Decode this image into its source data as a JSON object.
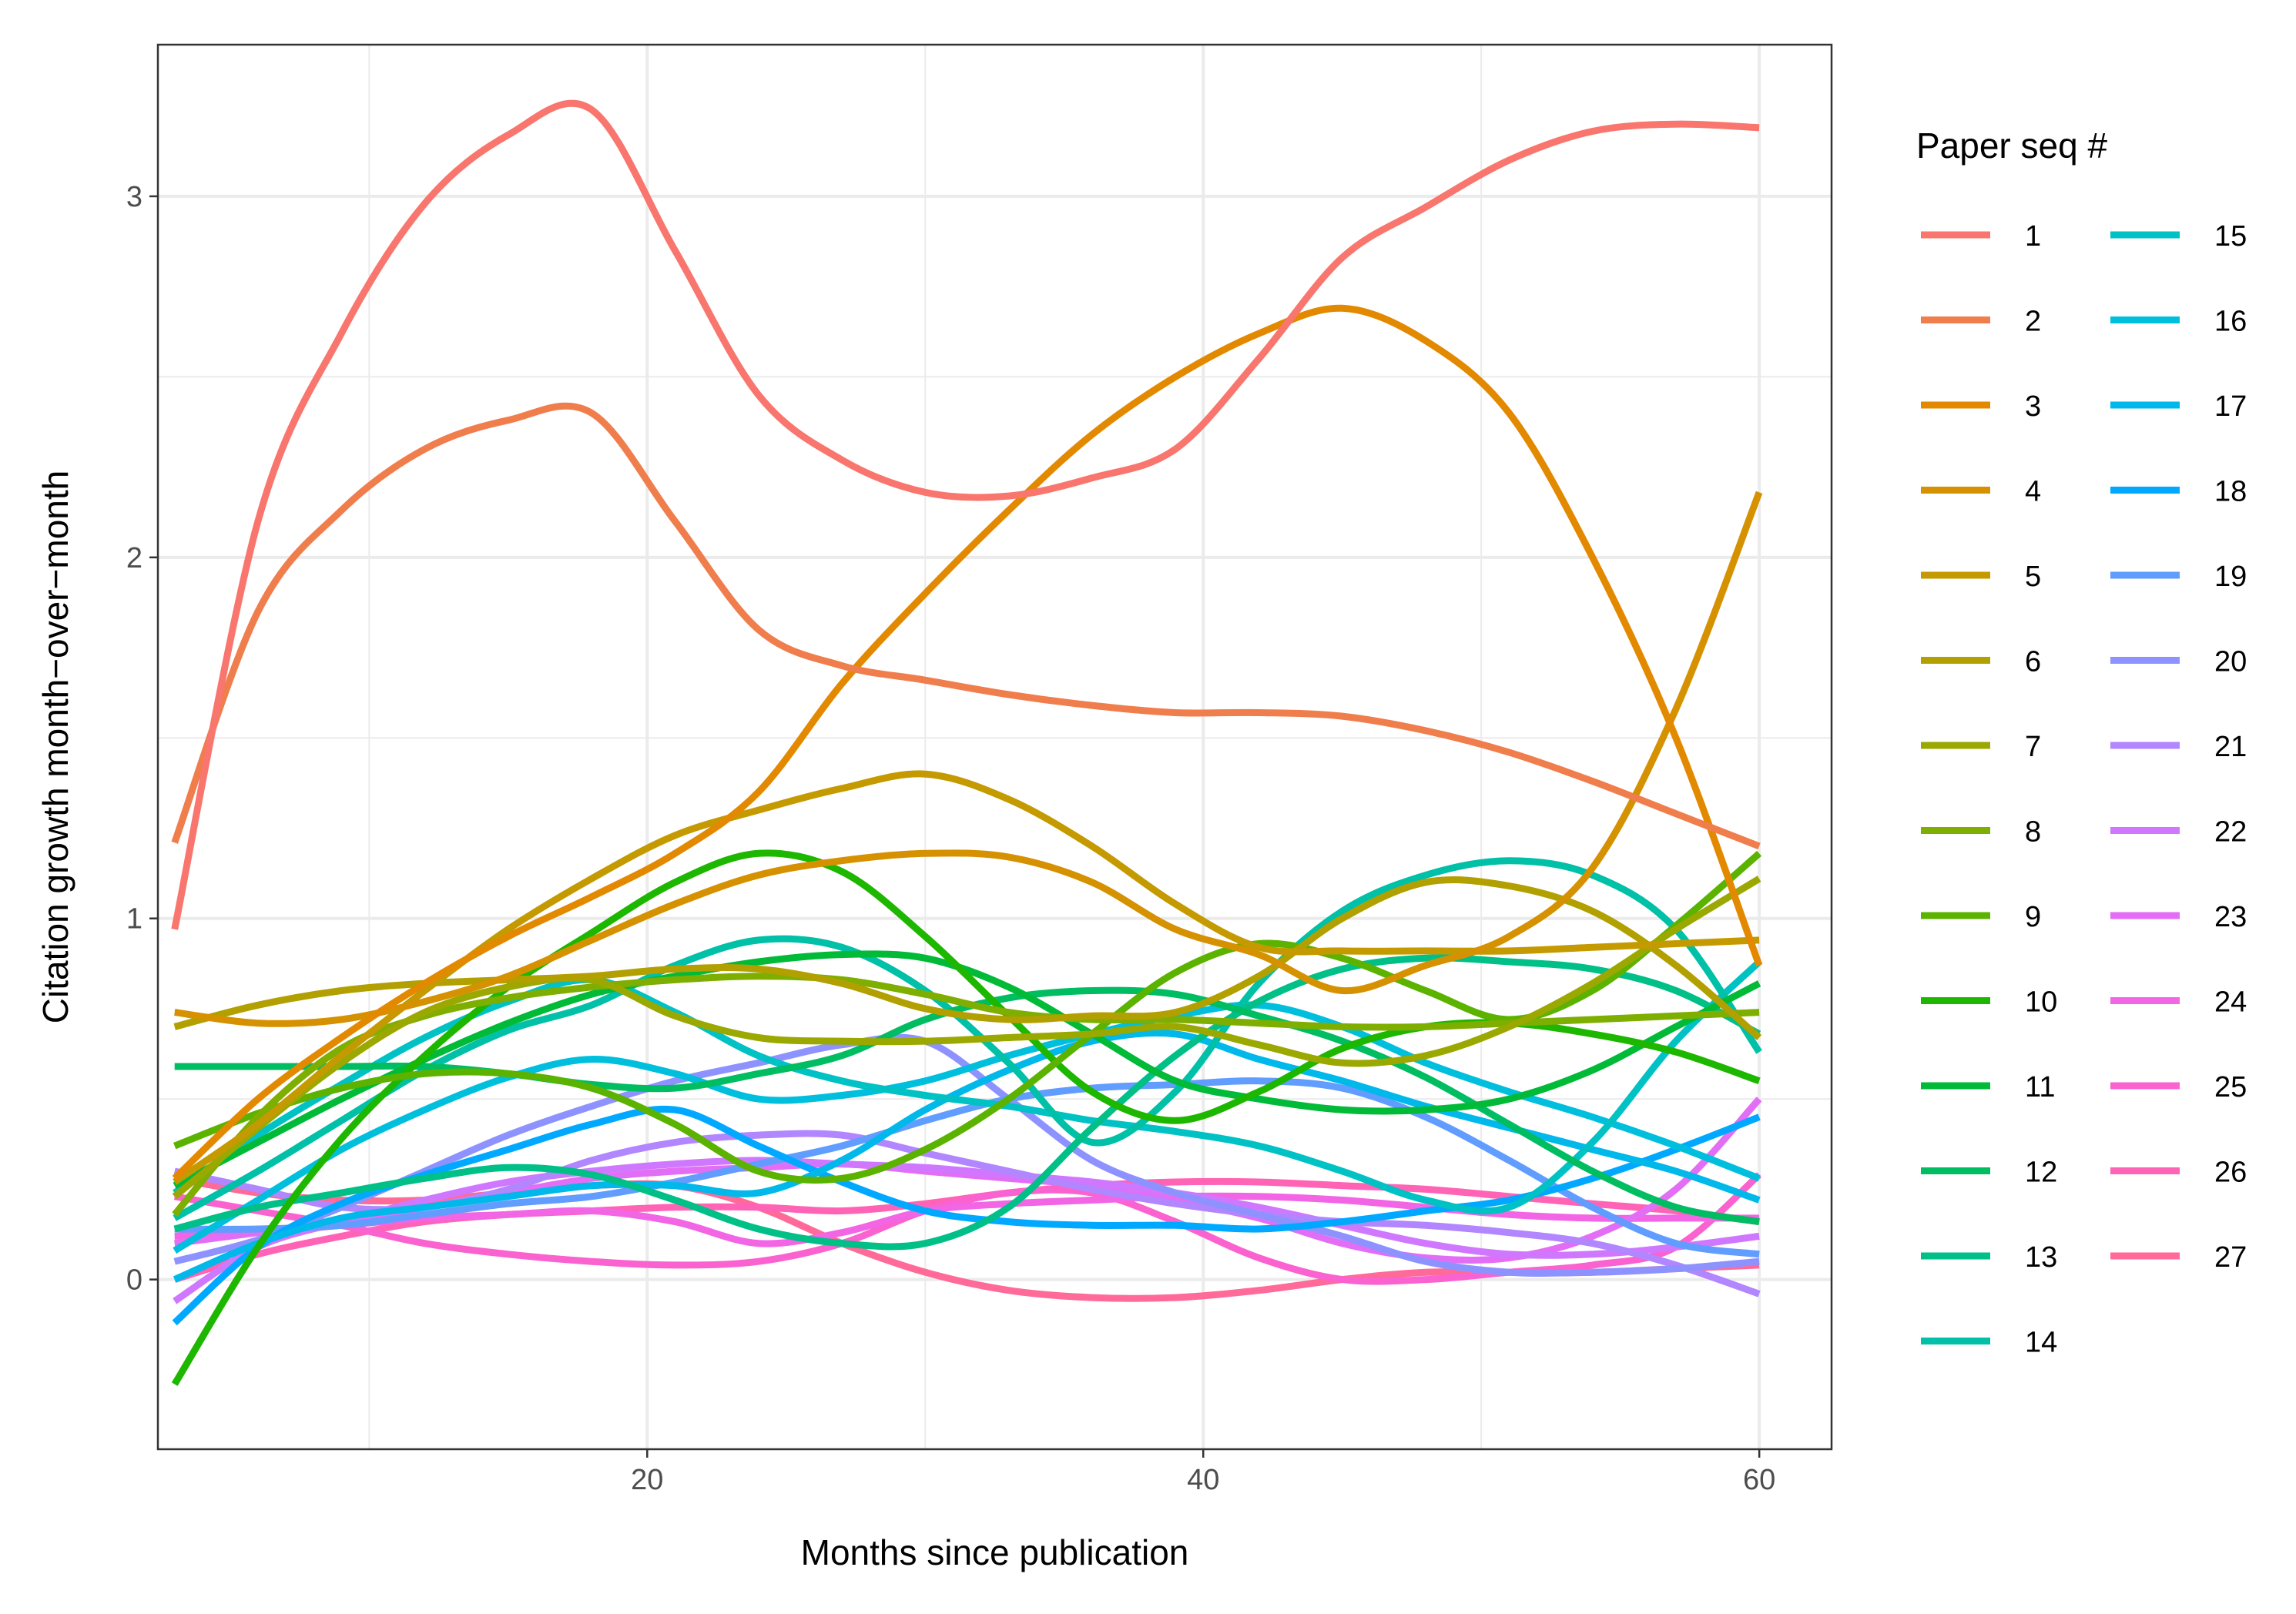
{
  "chart_data": {
    "type": "line",
    "xlabel": "Months since publication",
    "ylabel": "Citation growth month−over−month",
    "xlim": [
      2.4,
      62.6
    ],
    "ylim": [
      -0.47,
      3.42
    ],
    "x_ticks": [
      20,
      40,
      60
    ],
    "y_ticks": [
      0,
      1,
      2,
      3
    ],
    "grid": true,
    "legend": {
      "title": "Paper seq #",
      "placement": "right"
    },
    "x": [
      3,
      6,
      9,
      12,
      15,
      18,
      21,
      24,
      27,
      30,
      33,
      36,
      39,
      42,
      45,
      48,
      51,
      54,
      57,
      60
    ],
    "series": [
      {
        "name": "1",
        "color": "#F8766D",
        "values": [
          0.97,
          2.1,
          2.62,
          2.98,
          3.17,
          3.24,
          2.85,
          2.45,
          2.27,
          2.18,
          2.17,
          2.22,
          2.3,
          2.55,
          2.83,
          2.97,
          3.1,
          3.18,
          3.2,
          3.19
        ]
      },
      {
        "name": "2",
        "color": "#F07D4C",
        "values": [
          1.21,
          1.85,
          2.13,
          2.3,
          2.38,
          2.4,
          2.1,
          1.8,
          1.7,
          1.66,
          1.62,
          1.59,
          1.57,
          1.57,
          1.56,
          1.52,
          1.46,
          1.38,
          1.29,
          1.2
        ]
      },
      {
        "name": "3",
        "color": "#E38900",
        "values": [
          0.28,
          0.5,
          0.67,
          0.82,
          0.95,
          1.06,
          1.18,
          1.35,
          1.65,
          1.9,
          2.13,
          2.34,
          2.5,
          2.62,
          2.69,
          2.6,
          2.4,
          2.0,
          1.5,
          0.87
        ]
      },
      {
        "name": "4",
        "color": "#D59100",
        "values": [
          0.74,
          0.71,
          0.72,
          0.77,
          0.84,
          0.94,
          1.04,
          1.12,
          1.16,
          1.18,
          1.17,
          1.1,
          0.97,
          0.9,
          0.8,
          0.87,
          0.95,
          1.14,
          1.58,
          2.18
        ]
      },
      {
        "name": "5",
        "color": "#C49A00",
        "values": [
          0.27,
          0.43,
          0.62,
          0.8,
          0.97,
          1.11,
          1.23,
          1.3,
          1.36,
          1.4,
          1.33,
          1.2,
          1.04,
          0.92,
          0.91,
          0.91,
          0.91,
          0.92,
          0.93,
          0.94
        ]
      },
      {
        "name": "6",
        "color": "#B1A000",
        "values": [
          0.7,
          0.76,
          0.8,
          0.82,
          0.83,
          0.84,
          0.86,
          0.86,
          0.82,
          0.75,
          0.72,
          0.73,
          0.74,
          0.84,
          1.0,
          1.1,
          1.09,
          1.02,
          0.87,
          0.67
        ]
      },
      {
        "name": "7",
        "color": "#9AA800",
        "values": [
          0.23,
          0.42,
          0.6,
          0.74,
          0.81,
          0.83,
          0.73,
          0.67,
          0.66,
          0.66,
          0.67,
          0.68,
          0.7,
          0.65,
          0.6,
          0.62,
          0.7,
          0.82,
          0.97,
          1.11
        ]
      },
      {
        "name": "8",
        "color": "#7EAE00",
        "values": [
          0.18,
          0.45,
          0.64,
          0.73,
          0.78,
          0.81,
          0.83,
          0.84,
          0.83,
          0.79,
          0.74,
          0.72,
          0.72,
          0.71,
          0.7,
          0.7,
          0.71,
          0.72,
          0.73,
          0.74
        ]
      },
      {
        "name": "9",
        "color": "#5BB300",
        "values": [
          0.37,
          0.46,
          0.53,
          0.57,
          0.57,
          0.53,
          0.43,
          0.3,
          0.28,
          0.36,
          0.5,
          0.68,
          0.85,
          0.93,
          0.89,
          0.8,
          0.72,
          0.8,
          0.98,
          1.18
        ]
      },
      {
        "name": "10",
        "color": "#1DB700",
        "values": [
          -0.29,
          0.09,
          0.39,
          0.62,
          0.81,
          0.96,
          1.1,
          1.18,
          1.13,
          0.95,
          0.73,
          0.52,
          0.44,
          0.52,
          0.64,
          0.7,
          0.71,
          0.68,
          0.63,
          0.55
        ]
      },
      {
        "name": "11",
        "color": "#00BA38",
        "values": [
          0.26,
          0.38,
          0.5,
          0.61,
          0.71,
          0.79,
          0.84,
          0.88,
          0.9,
          0.89,
          0.81,
          0.68,
          0.55,
          0.5,
          0.47,
          0.47,
          0.5,
          0.58,
          0.7,
          0.82
        ]
      },
      {
        "name": "12",
        "color": "#00BD62",
        "values": [
          0.59,
          0.59,
          0.59,
          0.59,
          0.57,
          0.54,
          0.53,
          0.57,
          0.62,
          0.72,
          0.78,
          0.8,
          0.79,
          0.73,
          0.66,
          0.56,
          0.43,
          0.3,
          0.2,
          0.16
        ]
      },
      {
        "name": "13",
        "color": "#00BF87",
        "values": [
          0.14,
          0.2,
          0.24,
          0.28,
          0.31,
          0.29,
          0.22,
          0.14,
          0.1,
          0.1,
          0.2,
          0.42,
          0.62,
          0.77,
          0.86,
          0.89,
          0.88,
          0.86,
          0.8,
          0.68
        ]
      },
      {
        "name": "14",
        "color": "#00C0A7",
        "values": [
          0.17,
          0.3,
          0.44,
          0.58,
          0.69,
          0.76,
          0.87,
          0.94,
          0.92,
          0.8,
          0.6,
          0.38,
          0.52,
          0.82,
          1.02,
          1.12,
          1.16,
          1.12,
          0.97,
          0.63
        ]
      },
      {
        "name": "15",
        "color": "#00C1C4",
        "values": [
          0.24,
          0.4,
          0.54,
          0.67,
          0.77,
          0.83,
          0.74,
          0.62,
          0.55,
          0.51,
          0.48,
          0.44,
          0.41,
          0.37,
          0.3,
          0.22,
          0.2,
          0.38,
          0.66,
          0.88
        ]
      },
      {
        "name": "16",
        "color": "#00BFDD",
        "values": [
          0.08,
          0.22,
          0.36,
          0.47,
          0.56,
          0.61,
          0.57,
          0.5,
          0.51,
          0.55,
          0.62,
          0.68,
          0.73,
          0.76,
          0.7,
          0.6,
          0.52,
          0.45,
          0.37,
          0.28
        ]
      },
      {
        "name": "17",
        "color": "#00B8EA",
        "values": [
          0.0,
          0.1,
          0.17,
          0.2,
          0.23,
          0.26,
          0.26,
          0.24,
          0.33,
          0.47,
          0.58,
          0.66,
          0.68,
          0.61,
          0.55,
          0.48,
          0.42,
          0.36,
          0.3,
          0.22
        ]
      },
      {
        "name": "18",
        "color": "#00A9FF",
        "values": [
          -0.12,
          0.09,
          0.21,
          0.29,
          0.36,
          0.43,
          0.47,
          0.37,
          0.27,
          0.19,
          0.16,
          0.15,
          0.15,
          0.14,
          0.16,
          0.19,
          0.22,
          0.28,
          0.36,
          0.45
        ]
      },
      {
        "name": "19",
        "color": "#619CFF",
        "values": [
          0.14,
          0.14,
          0.15,
          0.18,
          0.21,
          0.23,
          0.27,
          0.32,
          0.37,
          0.44,
          0.5,
          0.53,
          0.54,
          0.55,
          0.53,
          0.45,
          0.33,
          0.2,
          0.1,
          0.07
        ]
      },
      {
        "name": "20",
        "color": "#8E92FF",
        "values": [
          0.05,
          0.11,
          0.2,
          0.3,
          0.4,
          0.48,
          0.55,
          0.6,
          0.65,
          0.66,
          0.5,
          0.33,
          0.24,
          0.18,
          0.12,
          0.05,
          0.02,
          0.02,
          0.03,
          0.05
        ]
      },
      {
        "name": "21",
        "color": "#B186FF",
        "values": [
          0.3,
          0.25,
          0.2,
          0.2,
          0.25,
          0.33,
          0.38,
          0.4,
          0.4,
          0.35,
          0.3,
          0.25,
          0.21,
          0.18,
          0.16,
          0.15,
          0.13,
          0.1,
          0.04,
          -0.04
        ]
      },
      {
        "name": "22",
        "color": "#CF78FF",
        "values": [
          -0.06,
          0.09,
          0.16,
          0.22,
          0.27,
          0.3,
          0.32,
          0.33,
          0.32,
          0.31,
          0.29,
          0.27,
          0.24,
          0.2,
          0.15,
          0.1,
          0.07,
          0.07,
          0.09,
          0.12
        ]
      },
      {
        "name": "23",
        "color": "#E36EF6",
        "values": [
          0.1,
          0.13,
          0.16,
          0.2,
          0.24,
          0.28,
          0.3,
          0.31,
          0.32,
          0.3,
          0.28,
          0.26,
          0.22,
          0.17,
          0.1,
          0.06,
          0.06,
          0.12,
          0.25,
          0.5
        ]
      },
      {
        "name": "24",
        "color": "#F265E4",
        "values": [
          0.12,
          0.13,
          0.15,
          0.17,
          0.18,
          0.19,
          0.16,
          0.1,
          0.13,
          0.19,
          0.21,
          0.22,
          0.23,
          0.23,
          0.22,
          0.2,
          0.18,
          0.17,
          0.17,
          0.17
        ]
      },
      {
        "name": "25",
        "color": "#FA62D0",
        "values": [
          0.23,
          0.19,
          0.15,
          0.1,
          0.07,
          0.05,
          0.04,
          0.05,
          0.1,
          0.19,
          0.24,
          0.24,
          0.16,
          0.06,
          0.0,
          0.0,
          0.02,
          0.04,
          0.09,
          0.29
        ]
      },
      {
        "name": "26",
        "color": "#FF63B6",
        "values": [
          0.0,
          0.07,
          0.12,
          0.16,
          0.18,
          0.19,
          0.2,
          0.2,
          0.19,
          0.21,
          0.24,
          0.26,
          0.27,
          0.27,
          0.26,
          0.25,
          0.23,
          0.21,
          0.19,
          0.16
        ]
      },
      {
        "name": "27",
        "color": "#FF6A98",
        "values": [
          0.28,
          0.24,
          0.22,
          0.22,
          0.24,
          0.26,
          0.26,
          0.2,
          0.1,
          0.02,
          -0.03,
          -0.05,
          -0.05,
          -0.03,
          0.0,
          0.02,
          0.02,
          0.02,
          0.03,
          0.04
        ]
      }
    ]
  }
}
